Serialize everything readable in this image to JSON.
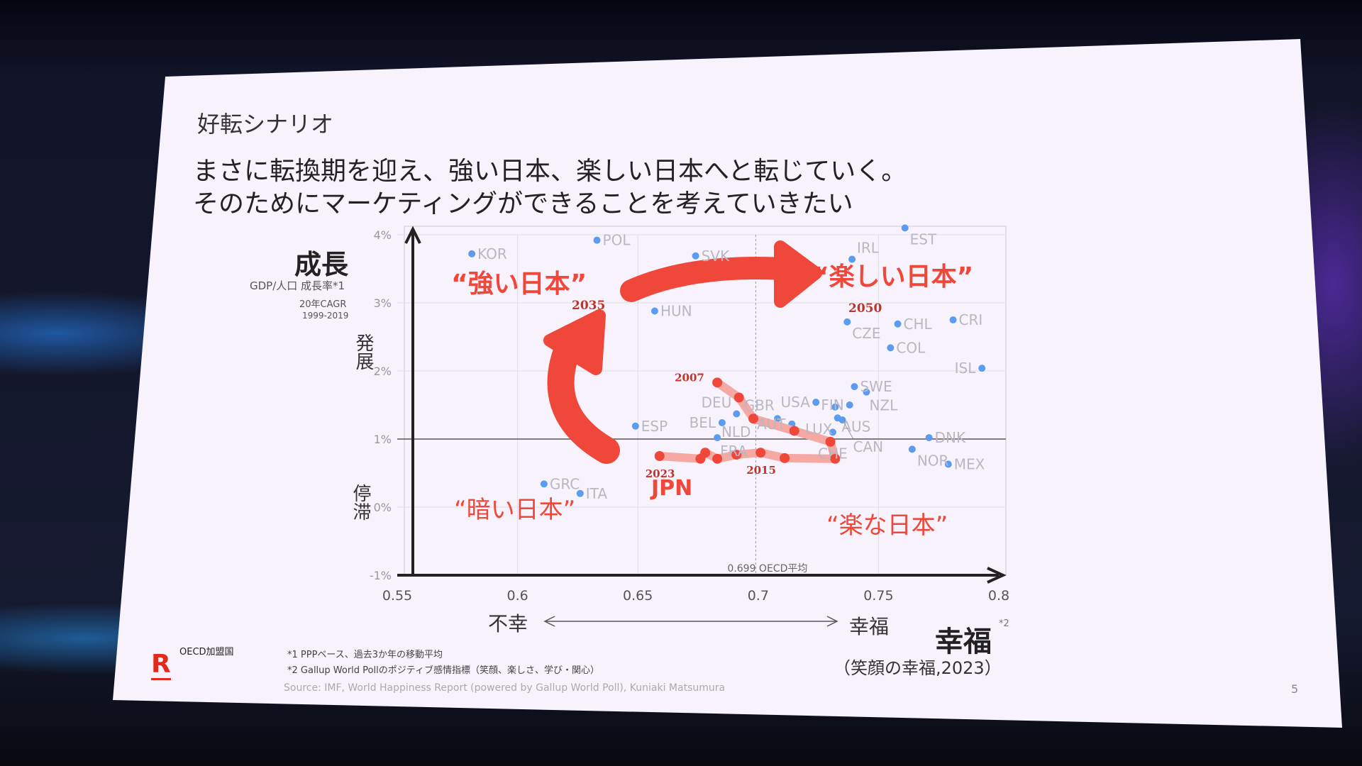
{
  "slide": {
    "section_title": "好転シナリオ",
    "headline_1": "まさに転換期を迎え、強い日本、楽しい日本へと転じていく。",
    "headline_2": "そのためにマーケティングができることを考えていきたい",
    "y_title": "成長",
    "y_sub": "GDP/人口 成長率*1",
    "y_sub2": "20年CAGR",
    "y_sub3": "1999-2019",
    "y_up": "発展",
    "y_down": "停滞",
    "x_left": "不幸",
    "x_right": "幸福",
    "x_title": "幸福",
    "x_title_note": "*2",
    "x_sub": "（笑顔の幸福,2023）",
    "oecd_label": "OECD加盟国",
    "footnote_1": "*1  PPPベース、過去3か年の移動平均",
    "footnote_2": "*2  Gallup World Pollのポジティブ感情指標（笑顔、楽しさ、学び・関心）",
    "source": "Source: IMF, World Happiness Report (powered by Gallup World Poll), Kuniaki Matsumura",
    "page_number": "5",
    "logo": "R"
  },
  "colors": {
    "accent": "#f0473b",
    "country": "#5b9cf0",
    "label": "#b8b8c4",
    "axis": "#222222"
  },
  "chart_data": {
    "type": "scatter",
    "xlim": [
      0.55,
      0.8
    ],
    "ylim": [
      -1,
      4
    ],
    "x_ticks": [
      "0.55",
      "0.6",
      "0.65",
      "0.7",
      "0.75",
      "0.8"
    ],
    "y_ticks": [
      "4%",
      "3%",
      "2%",
      "1%",
      "0%",
      "-1%"
    ],
    "oecd_average_x": 0.699,
    "oecd_average_label": "0.699 OECD平均",
    "countries": [
      {
        "name": "KOR",
        "x": 0.581,
        "y": 3.72
      },
      {
        "name": "POL",
        "x": 0.633,
        "y": 3.92
      },
      {
        "name": "SVK",
        "x": 0.674,
        "y": 3.69
      },
      {
        "name": "EST",
        "x": 0.761,
        "y": 4.1
      },
      {
        "name": "IRL",
        "x": 0.739,
        "y": 3.64
      },
      {
        "name": "HUN",
        "x": 0.657,
        "y": 2.88
      },
      {
        "name": "CZE",
        "x": 0.737,
        "y": 2.72
      },
      {
        "name": "CHL",
        "x": 0.758,
        "y": 2.69
      },
      {
        "name": "CRI",
        "x": 0.781,
        "y": 2.75
      },
      {
        "name": "COL",
        "x": 0.755,
        "y": 2.34
      },
      {
        "name": "ISL",
        "x": 0.793,
        "y": 2.04
      },
      {
        "name": "SWE",
        "x": 0.74,
        "y": 1.77
      },
      {
        "name": "NZL",
        "x": 0.745,
        "y": 1.69
      },
      {
        "name": "FIN",
        "x": 0.738,
        "y": 1.5
      },
      {
        "name": "USA",
        "x": 0.724,
        "y": 1.54
      },
      {
        "name": "AUS",
        "x": 0.732,
        "y": 1.47
      },
      {
        "name": "LUX",
        "x": 0.733,
        "y": 1.31
      },
      {
        "name": "CAN",
        "x": 0.735,
        "y": 1.28
      },
      {
        "name": "AUT",
        "x": 0.714,
        "y": 1.22
      },
      {
        "name": "GBR",
        "x": 0.708,
        "y": 1.3
      },
      {
        "name": "NLD",
        "x": 0.699,
        "y": 1.27
      },
      {
        "name": "DEU",
        "x": 0.691,
        "y": 1.37
      },
      {
        "name": "BEL",
        "x": 0.685,
        "y": 1.24
      },
      {
        "name": "ESP",
        "x": 0.649,
        "y": 1.19
      },
      {
        "name": "FRA",
        "x": 0.683,
        "y": 1.02
      },
      {
        "name": "CHE",
        "x": 0.731,
        "y": 1.1
      },
      {
        "name": "DNK",
        "x": 0.771,
        "y": 1.02
      },
      {
        "name": "NOR",
        "x": 0.764,
        "y": 0.85
      },
      {
        "name": "MEX",
        "x": 0.779,
        "y": 0.63
      },
      {
        "name": "GRC",
        "x": 0.611,
        "y": 0.34
      },
      {
        "name": "ITA",
        "x": 0.626,
        "y": 0.2
      }
    ],
    "jpn_series": {
      "name": "JPN",
      "points": [
        {
          "year": "2007",
          "x": 0.683,
          "y": 1.83
        },
        {
          "x": 0.692,
          "y": 1.61
        },
        {
          "x": 0.698,
          "y": 1.3
        },
        {
          "x": 0.715,
          "y": 1.12
        },
        {
          "x": 0.73,
          "y": 0.96
        },
        {
          "x": 0.732,
          "y": 0.71
        },
        {
          "x": 0.711,
          "y": 0.72
        },
        {
          "year": "2015",
          "x": 0.701,
          "y": 0.8
        },
        {
          "x": 0.691,
          "y": 0.77
        },
        {
          "x": 0.683,
          "y": 0.71
        },
        {
          "x": 0.678,
          "y": 0.8
        },
        {
          "x": 0.676,
          "y": 0.71
        },
        {
          "year": "2023",
          "x": 0.659,
          "y": 0.75
        }
      ]
    },
    "scenarios": [
      {
        "label": "“強い日本”",
        "year": "2035"
      },
      {
        "label": "“楽しい日本”",
        "year": "2050"
      },
      {
        "label": "“暗い日本”"
      },
      {
        "label": "“楽な日本”"
      }
    ]
  }
}
